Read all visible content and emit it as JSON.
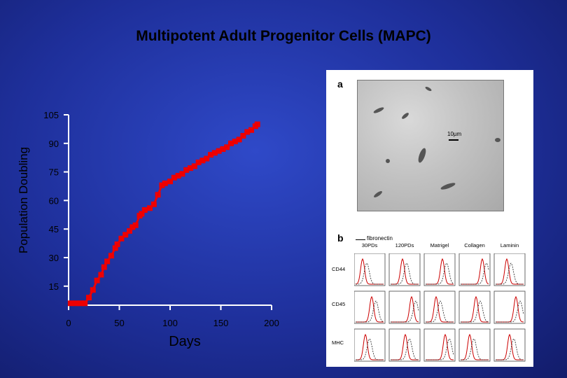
{
  "title": "Multipotent Adult Progenitor Cells (MAPC)",
  "chart_data": {
    "type": "line",
    "title": "Multipotent Adult Progenitor Cells (MAPC)",
    "xlabel": "Days",
    "ylabel": "Population Doubling",
    "xlim": [
      0,
      200
    ],
    "ylim": [
      5,
      105
    ],
    "x_ticks": [
      0,
      50,
      100,
      150,
      200
    ],
    "x_tick_labels": [
      "0",
      "50",
      "100",
      "150",
      "200"
    ],
    "y_ticks": [
      15,
      30,
      45,
      60,
      75,
      90,
      105
    ],
    "y_tick_labels": [
      "15",
      "30",
      "45",
      "60",
      "75",
      "90",
      "105"
    ],
    "series": [
      {
        "name": "MAPC",
        "color": "#ee0000",
        "x": [
          2,
          7,
          12,
          16,
          20,
          24,
          28,
          32,
          35,
          38,
          42,
          46,
          48,
          52,
          56,
          60,
          63,
          66,
          70,
          72,
          75,
          80,
          84,
          88,
          92,
          95,
          100,
          104,
          108,
          112,
          116,
          120,
          124,
          128,
          132,
          136,
          140,
          144,
          148,
          152,
          156,
          160,
          164,
          168,
          172,
          176,
          180,
          184,
          186
        ],
        "values": [
          6,
          6,
          6,
          6,
          9,
          13,
          18,
          21,
          25,
          28,
          31,
          35,
          37,
          40,
          42,
          44,
          46,
          47,
          52,
          53,
          55,
          56,
          58,
          63,
          68,
          69,
          70,
          72,
          73,
          74,
          76,
          77,
          78,
          80,
          81,
          82,
          84,
          85,
          86,
          87,
          88,
          90,
          91,
          92,
          94,
          96,
          97,
          99,
          100
        ]
      }
    ]
  },
  "figure_panel": {
    "panel_a_label": "a",
    "panel_b_label": "b",
    "scale_label": "10µm",
    "legend_label": "fibronectin",
    "column_labels": [
      "30PDs",
      "120PDs",
      "Matrigel",
      "Collagen",
      "Laminin"
    ],
    "row_labels": [
      "CD44",
      "CD45",
      "MHC"
    ]
  }
}
